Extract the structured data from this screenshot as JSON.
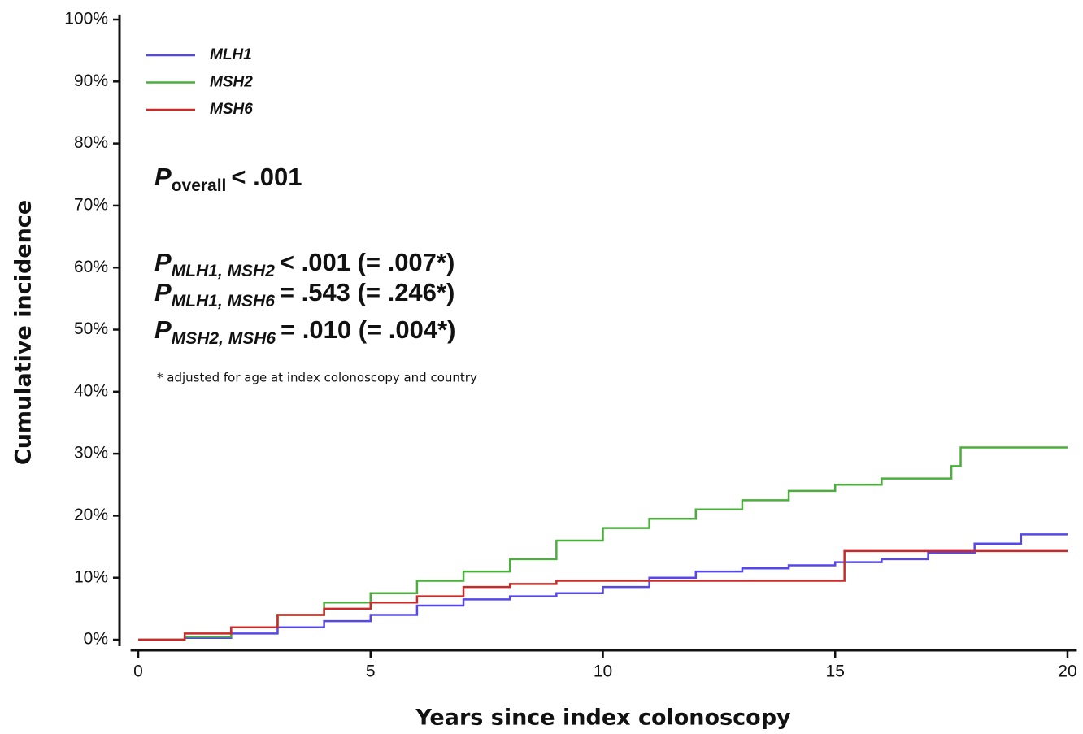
{
  "chart_data": {
    "type": "line",
    "step": true,
    "x_label": "Years since index colonoscopy",
    "y_label": "Cumulative incidence",
    "xlim": [
      -0.2,
      20.2
    ],
    "xticks": [
      0,
      5,
      10,
      15,
      20
    ],
    "ylim": [
      -1.7,
      100.8
    ],
    "yticks": [
      {
        "value": 0,
        "label": "0%"
      },
      {
        "value": 10,
        "label": "10%"
      },
      {
        "value": 20,
        "label": "20%"
      },
      {
        "value": 30,
        "label": "30%"
      },
      {
        "value": 40,
        "label": "40%"
      },
      {
        "value": 50,
        "label": "50%"
      },
      {
        "value": 60,
        "label": "60%"
      },
      {
        "value": 70,
        "label": "70%"
      },
      {
        "value": 80,
        "label": "80%"
      },
      {
        "value": 90,
        "label": "90%"
      },
      {
        "value": 100,
        "label": "100%"
      }
    ],
    "legend": "upper left",
    "series": [
      {
        "name": "MLH1",
        "color": "#5648e8",
        "x": [
          0,
          1,
          2,
          3,
          4,
          5,
          6,
          7,
          8,
          9,
          10,
          11,
          12,
          13,
          14,
          15,
          16,
          17,
          18,
          19,
          20
        ],
        "values": [
          0,
          0.3,
          1,
          2,
          3,
          4,
          5.5,
          6.5,
          7,
          7.5,
          8.5,
          10,
          11,
          11.5,
          12,
          12.5,
          13,
          14,
          15.5,
          17,
          17
        ]
      },
      {
        "name": "MSH2",
        "color": "#4cae3c",
        "x": [
          0,
          1,
          2,
          3,
          4,
          5,
          6,
          7,
          8,
          9,
          10,
          11,
          12,
          13,
          14,
          15,
          16,
          17,
          17.5,
          17.7,
          20
        ],
        "values": [
          0,
          0.5,
          2,
          4,
          6,
          7.5,
          9.5,
          11,
          13,
          16,
          18,
          19.5,
          21,
          22.5,
          24,
          25,
          26,
          26,
          28,
          31,
          31
        ]
      },
      {
        "name": "MSH6",
        "color": "#c92a2a",
        "x": [
          0,
          1,
          2,
          3,
          4,
          5,
          6,
          7,
          8,
          9,
          15.2,
          17,
          20
        ],
        "values": [
          0,
          1,
          2,
          4,
          5,
          6,
          7,
          8.5,
          9,
          9.5,
          14.3,
          14.3,
          14.3
        ]
      }
    ],
    "annotations": [
      {
        "symbol": "P",
        "subscript": "overall",
        "text": "< .001"
      },
      {
        "symbol": "P",
        "subscript": "MLH1, MSH2",
        "text": "< .001 (= .007*)"
      },
      {
        "symbol": "P",
        "subscript": "MLH1, MSH6",
        "text": "= .543 (= .246*)"
      },
      {
        "symbol": "P",
        "subscript": "MSH2, MSH6",
        "text": "= .010 (= .004*)"
      }
    ],
    "footnote": "* adjusted for age at index colonoscopy and country"
  }
}
